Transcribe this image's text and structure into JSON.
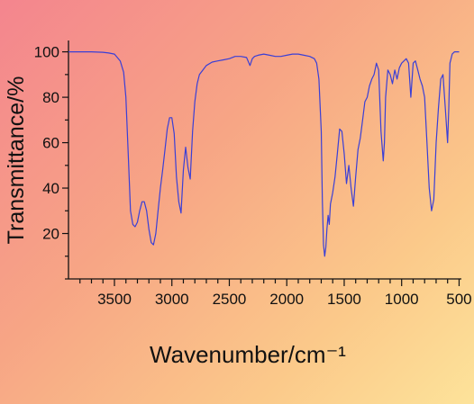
{
  "chart_data": {
    "type": "line",
    "title": "",
    "xlabel": "Wavenumber/cm⁻¹",
    "ylabel": "Transmittance/%",
    "xlim": [
      3900,
      480
    ],
    "ylim": [
      0,
      105
    ],
    "x_reversed": true,
    "grid": false,
    "xticks": [
      3500,
      3000,
      2500,
      2000,
      1500,
      1000,
      500
    ],
    "yticks": [
      20,
      40,
      60,
      80,
      100
    ],
    "line_color": "#3a3fd6",
    "series": [
      {
        "x": [
          3900,
          3800,
          3700,
          3600,
          3550,
          3500,
          3450,
          3420,
          3400,
          3380,
          3360,
          3340,
          3320,
          3300,
          3280,
          3260,
          3240,
          3220,
          3200,
          3180,
          3160,
          3140,
          3120,
          3100,
          3080,
          3060,
          3040,
          3020,
          3000,
          2980,
          2960,
          2940,
          2920,
          2900,
          2880,
          2860,
          2840,
          2820,
          2800,
          2780,
          2760,
          2700,
          2650,
          2600,
          2550,
          2500,
          2450,
          2400,
          2350,
          2320,
          2300,
          2280,
          2250,
          2200,
          2150,
          2100,
          2050,
          2000,
          1950,
          1900,
          1850,
          1800,
          1760,
          1740,
          1720,
          1700,
          1690,
          1680,
          1670,
          1660,
          1650,
          1640,
          1630,
          1620,
          1600,
          1580,
          1560,
          1540,
          1520,
          1500,
          1480,
          1460,
          1440,
          1420,
          1400,
          1380,
          1360,
          1340,
          1320,
          1300,
          1280,
          1260,
          1240,
          1220,
          1200,
          1180,
          1160,
          1150,
          1140,
          1120,
          1100,
          1080,
          1060,
          1040,
          1020,
          1000,
          980,
          960,
          940,
          920,
          900,
          880,
          860,
          840,
          820,
          800,
          780,
          760,
          740,
          720,
          700,
          680,
          660,
          640,
          620,
          600,
          590,
          580,
          560,
          540,
          520,
          500
        ],
        "y": [
          100,
          100,
          100,
          99.8,
          99.5,
          99,
          96,
          91,
          80,
          55,
          30,
          24,
          23,
          25,
          30,
          34,
          34,
          30,
          22,
          16,
          15,
          20,
          30,
          40,
          48,
          57,
          66,
          71,
          71,
          64,
          45,
          34,
          29,
          48,
          58,
          49,
          44,
          65,
          78,
          86,
          90,
          94,
          95.5,
          96,
          96.5,
          97,
          98,
          98,
          97.5,
          94,
          97,
          98,
          98.5,
          99,
          98.5,
          98,
          98,
          98.5,
          99,
          99,
          98.5,
          98,
          97,
          95,
          88,
          65,
          35,
          15,
          10,
          14,
          22,
          28,
          24,
          33,
          38,
          45,
          55,
          66,
          65,
          55,
          42,
          50,
          40,
          32,
          45,
          57,
          62,
          70,
          78,
          80,
          85,
          88,
          90,
          95,
          92,
          65,
          52,
          60,
          80,
          92,
          90,
          86,
          92,
          88,
          93,
          95,
          96,
          97,
          95,
          80,
          95,
          96,
          92,
          88,
          85,
          80,
          60,
          40,
          30,
          35,
          60,
          75,
          88,
          90,
          75,
          60,
          75,
          95,
          99,
          100,
          100,
          100
        ]
      }
    ]
  }
}
